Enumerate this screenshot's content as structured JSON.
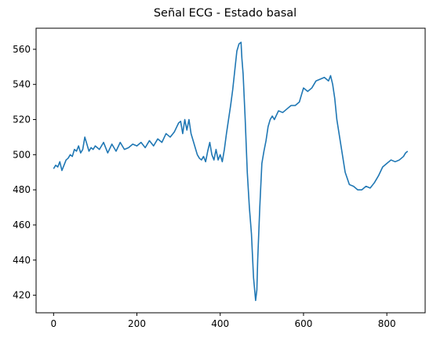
{
  "chart_data": {
    "type": "line",
    "title": "Señal ECG - Estado basal",
    "xlabel": "",
    "ylabel": "",
    "xlim": [
      -42,
      892
    ],
    "ylim": [
      410,
      572
    ],
    "xticks": [
      0,
      200,
      400,
      600,
      800
    ],
    "yticks": [
      420,
      440,
      460,
      480,
      500,
      520,
      540,
      560
    ],
    "grid": false,
    "legend": "none",
    "series": [
      {
        "color": "#1f77b4",
        "x": [
          0,
          5,
          10,
          15,
          20,
          25,
          30,
          35,
          40,
          45,
          50,
          55,
          60,
          65,
          70,
          75,
          80,
          85,
          90,
          95,
          100,
          110,
          120,
          130,
          140,
          150,
          160,
          170,
          180,
          190,
          200,
          210,
          220,
          230,
          240,
          250,
          260,
          270,
          280,
          290,
          300,
          305,
          310,
          315,
          320,
          325,
          330,
          335,
          340,
          345,
          350,
          355,
          360,
          365,
          370,
          375,
          380,
          385,
          390,
          395,
          400,
          405,
          410,
          415,
          420,
          425,
          430,
          435,
          440,
          445,
          450,
          452,
          455,
          460,
          465,
          470,
          475,
          480,
          485,
          488,
          490,
          495,
          500,
          505,
          510,
          515,
          520,
          525,
          530,
          540,
          550,
          560,
          570,
          580,
          590,
          600,
          610,
          620,
          630,
          640,
          650,
          660,
          665,
          670,
          675,
          680,
          690,
          700,
          710,
          720,
          730,
          740,
          750,
          760,
          770,
          780,
          790,
          800,
          810,
          820,
          830,
          840,
          845,
          850
        ],
        "values": [
          492,
          494,
          493,
          496,
          491,
          494,
          497,
          498,
          500,
          499,
          503,
          502,
          505,
          501,
          503,
          510,
          506,
          502,
          504,
          503,
          505,
          503,
          507,
          501,
          506,
          502,
          507,
          503,
          504,
          506,
          505,
          507,
          504,
          508,
          505,
          509,
          507,
          512,
          510,
          513,
          518,
          519,
          512,
          520,
          514,
          520,
          512,
          508,
          504,
          500,
          498,
          497,
          499,
          496,
          502,
          507,
          500,
          497,
          503,
          497,
          500,
          496,
          503,
          512,
          520,
          528,
          537,
          548,
          559,
          563,
          564,
          555,
          546,
          520,
          490,
          470,
          455,
          430,
          417,
          423,
          440,
          470,
          495,
          502,
          508,
          516,
          520,
          522,
          520,
          525,
          524,
          526,
          528,
          528,
          530,
          538,
          536,
          538,
          542,
          543,
          544,
          542,
          545,
          540,
          532,
          520,
          505,
          490,
          483,
          482,
          480,
          480,
          482,
          481,
          484,
          488,
          493,
          495,
          497,
          496,
          497,
          499,
          501,
          502
        ]
      }
    ]
  }
}
